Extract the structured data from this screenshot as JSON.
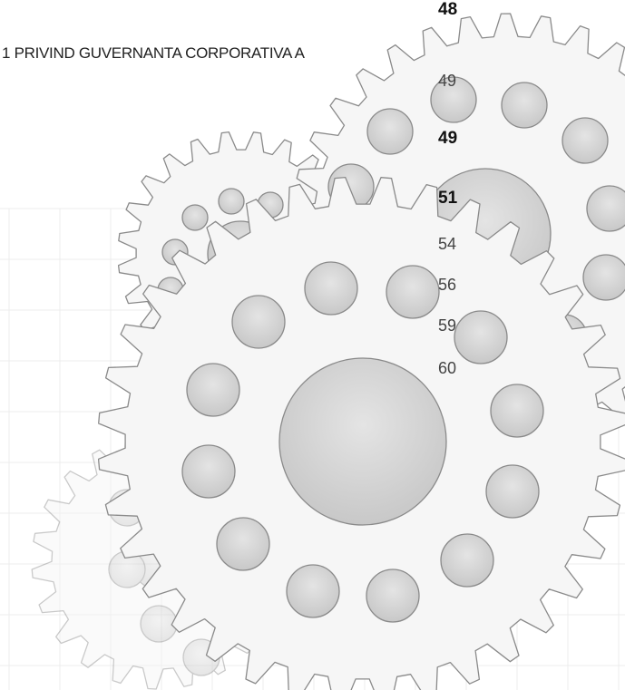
{
  "heading": "1 PRIVIND GUVERNANTA CORPORATIVA A",
  "page_numbers": [
    {
      "page": "48",
      "bold": true
    },
    {
      "page": "49",
      "bold": false
    },
    {
      "page": "49",
      "bold": true
    },
    {
      "page": "51",
      "bold": true
    },
    {
      "page": "54",
      "bold": false
    },
    {
      "page": "56",
      "bold": false
    },
    {
      "page": "59",
      "bold": false
    },
    {
      "page": "60",
      "bold": false
    }
  ]
}
